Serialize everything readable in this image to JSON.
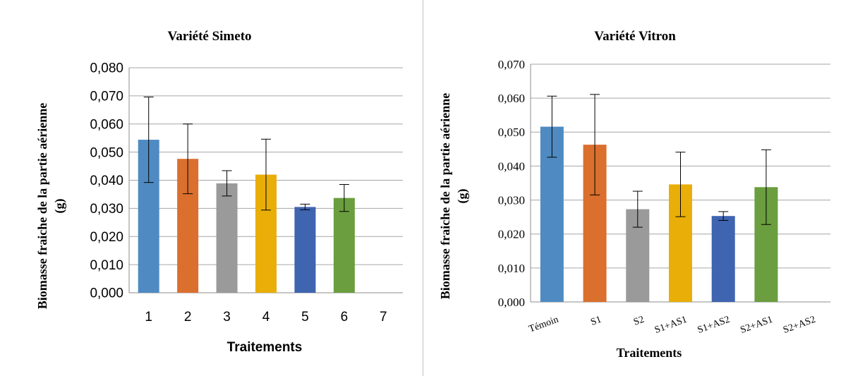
{
  "chart_data": [
    {
      "type": "bar",
      "title": "Variété Simeto",
      "xlabel": "Traitements",
      "ylabel": "Biomasse fraiche de la partie aérienne (g)",
      "ylabel_lines": [
        "Biomasse fraiche de la partie aérienne",
        "(g)"
      ],
      "categories": [
        "1",
        "2",
        "3",
        "4",
        "5",
        "6",
        "7"
      ],
      "values": [
        0.0544,
        0.0476,
        0.0389,
        0.042,
        0.0305,
        0.0337,
        null
      ],
      "errors": [
        0.0152,
        0.0124,
        0.0045,
        0.0126,
        0.001,
        0.0048,
        null
      ],
      "colors": [
        "#4F8BC2",
        "#DA6F2E",
        "#9A9A9A",
        "#E9AE08",
        "#3F64B0",
        "#6A9E3F",
        "#4F8BC2"
      ],
      "ylim": [
        0,
        0.08
      ],
      "yticks": [
        "0,000",
        "0,010",
        "0,020",
        "0,030",
        "0,040",
        "0,050",
        "0,060",
        "0,070",
        "0,080"
      ],
      "grid": true,
      "legend": "none"
    },
    {
      "type": "bar",
      "title": "Variété Vitron",
      "xlabel": "Traitements",
      "ylabel": "Biomasse fraiche de la partie aérienne (g)",
      "ylabel_lines": [
        "Biomasse fraiche de la partie aérienne",
        "(g)"
      ],
      "categories": [
        "Témoin",
        "S1",
        "S2",
        "S1+AS1",
        "S1+AS2",
        "S2+AS1",
        "S2+AS2"
      ],
      "values": [
        0.0516,
        0.0463,
        0.0273,
        0.0346,
        0.0253,
        0.0338,
        null
      ],
      "errors": [
        0.009,
        0.0148,
        0.0053,
        0.0095,
        0.0013,
        0.011,
        null
      ],
      "colors": [
        "#4F8BC2",
        "#DA6F2E",
        "#9A9A9A",
        "#E9AE08",
        "#3F64B0",
        "#6A9E3F",
        "#4F8BC2"
      ],
      "ylim": [
        0,
        0.07
      ],
      "yticks": [
        "0,000",
        "0,010",
        "0,020",
        "0,030",
        "0,040",
        "0,050",
        "0,060",
        "0,070"
      ],
      "grid": true,
      "legend": "none"
    }
  ]
}
